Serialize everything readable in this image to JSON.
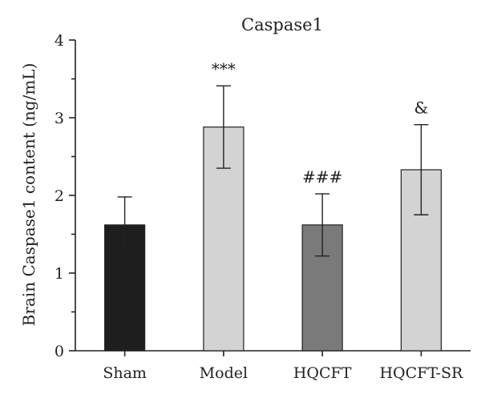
{
  "chart_data": {
    "type": "bar",
    "title": "Caspase1",
    "xlabel": "",
    "ylabel": "Brain Caspase1 content (ng/mL)",
    "ylim": [
      0,
      4
    ],
    "yticks": [
      "0",
      "1",
      "2",
      "3",
      "4"
    ],
    "categories": [
      "Sham",
      "Model",
      "HQCFT",
      "HQCFT-SR"
    ],
    "values": [
      1.62,
      2.88,
      1.62,
      2.33
    ],
    "errors": [
      0.36,
      0.53,
      0.4,
      0.58
    ],
    "annotations": [
      "",
      "***",
      "###",
      "&"
    ],
    "colors": [
      "#1e1e1e",
      "#d3d3d3",
      "#7a7a7a",
      "#d3d3d3"
    ],
    "grid": false
  }
}
